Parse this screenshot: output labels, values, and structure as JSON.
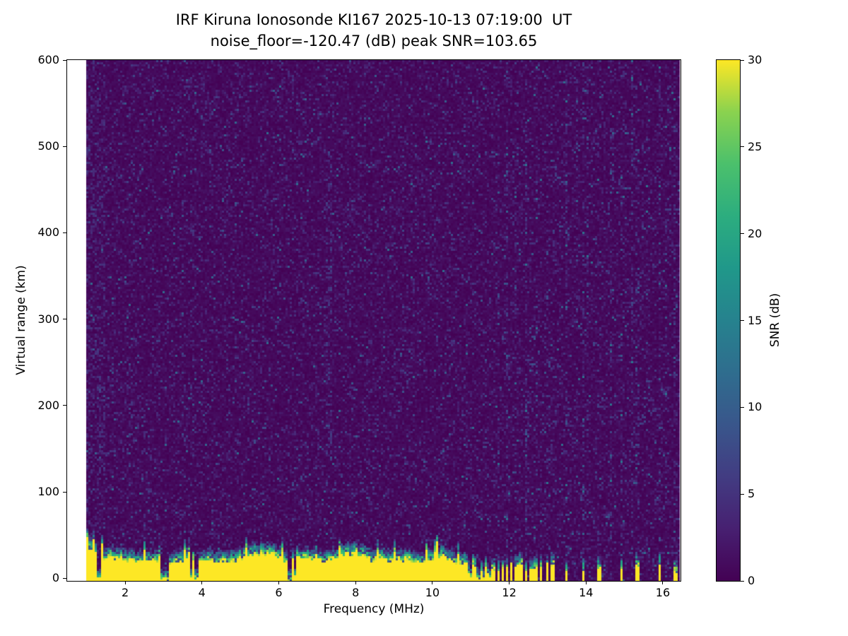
{
  "title": {
    "line1": "IRF Kiruna Ionosonde KI167 2025-10-13 07:19:00  UT",
    "line2": "noise_floor=-120.47 (dB) peak SNR=103.65"
  },
  "axes": {
    "xlabel": "Frequency (MHz)",
    "ylabel": "Virtual range (km)",
    "x_ticks": [
      2,
      4,
      6,
      8,
      10,
      12,
      14,
      16
    ],
    "y_ticks": [
      0,
      100,
      200,
      300,
      400,
      500,
      600
    ],
    "x_range": [
      0.49,
      16.46
    ],
    "y_range": [
      -3,
      600
    ]
  },
  "colorbar": {
    "label": "SNR (dB)",
    "ticks": [
      0,
      5,
      10,
      15,
      20,
      25,
      30
    ],
    "min": 0,
    "max": 30,
    "colormap": "viridis"
  },
  "chart_data": {
    "type": "heatmap",
    "title": "IRF Kiruna Ionosonde KI167 2025-10-13 07:19:00  UT",
    "subtitle": "noise_floor=-120.47 (dB) peak SNR=103.65",
    "xlabel": "Frequency (MHz)",
    "ylabel": "Virtual range (km)",
    "x_range_mhz": [
      0.49,
      16.46
    ],
    "data_freq_range_mhz": [
      1.0,
      16.42
    ],
    "y_range_km": [
      -3,
      600
    ],
    "noise_floor_db": -120.47,
    "peak_snr_db": 103.65,
    "colorbar": {
      "label": "SNR (dB)",
      "min_db": 0,
      "max_db": 30,
      "ticks": [
        0,
        5,
        10,
        15,
        20,
        25,
        30
      ],
      "colormap": "viridis"
    },
    "features": {
      "background_snr_db": 0,
      "ground_echo_band": {
        "freq_start_mhz": 1.0,
        "freq_end_mhz": 11.65,
        "top_km_min": 20,
        "top_km_max": 48,
        "snr_db": 30
      },
      "band_notches_mhz": [
        1.33,
        2.96,
        3.1,
        3.72,
        3.87,
        6.3,
        6.42,
        11.0,
        11.18,
        11.34,
        11.5
      ],
      "echo_stripes_mhz": [
        11.72,
        11.82,
        11.94,
        12.06,
        12.18,
        12.3,
        12.44,
        12.57,
        12.7,
        12.84,
        12.98,
        13.12,
        13.5,
        13.93,
        14.35,
        14.92,
        15.33,
        15.92,
        16.32
      ],
      "interference_stripes_mhz": [
        11.72,
        11.94,
        12.18,
        12.44,
        12.7,
        12.98,
        13.5,
        13.75,
        13.93,
        14.05,
        14.35,
        14.65,
        14.92,
        15.2,
        15.33,
        15.63,
        15.92,
        16.1,
        16.32
      ],
      "enhanced_noise_columns_mhz": [
        7.3
      ],
      "low_freq_noise_enhancement_below_mhz": 1.5
    },
    "render_seed": 167
  }
}
